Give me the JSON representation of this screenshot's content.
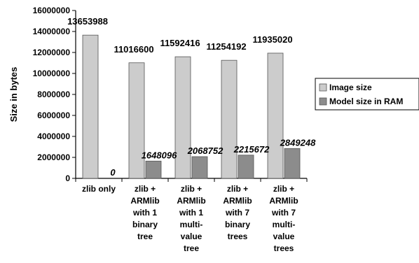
{
  "chart_data": {
    "type": "bar",
    "title": "",
    "xlabel": "",
    "ylabel": "Size in bytes",
    "ylim": [
      0,
      16000000
    ],
    "yticks": [
      0,
      2000000,
      4000000,
      6000000,
      8000000,
      10000000,
      12000000,
      14000000,
      16000000
    ],
    "grid": false,
    "legend_position": "right",
    "categories": [
      [
        "zlib only"
      ],
      [
        "zlib +",
        "ARMlib",
        "with 1",
        "binary",
        "tree"
      ],
      [
        "zlib +",
        "ARMlib",
        "with 1",
        "multi-",
        "value",
        "tree"
      ],
      [
        "zlib +",
        "ARMlib",
        "with 7",
        "binary",
        "trees"
      ],
      [
        "zlib +",
        "ARMlib",
        "with 7",
        "multi-",
        "value",
        "trees"
      ]
    ],
    "series": [
      {
        "name": "Image size",
        "color": "#cccccc",
        "values": [
          13653988,
          11016600,
          11592416,
          11254192,
          11935020
        ],
        "labels": [
          "13653988",
          "11016600",
          "11592416",
          "11254192",
          "11935020"
        ]
      },
      {
        "name": "Model size in RAM",
        "color": "#8c8c8c",
        "values": [
          0,
          1648096,
          2068752,
          2215672,
          2849248
        ],
        "labels": [
          "0",
          "1648096",
          "2068752",
          "2215672",
          "2849248"
        ]
      }
    ]
  }
}
